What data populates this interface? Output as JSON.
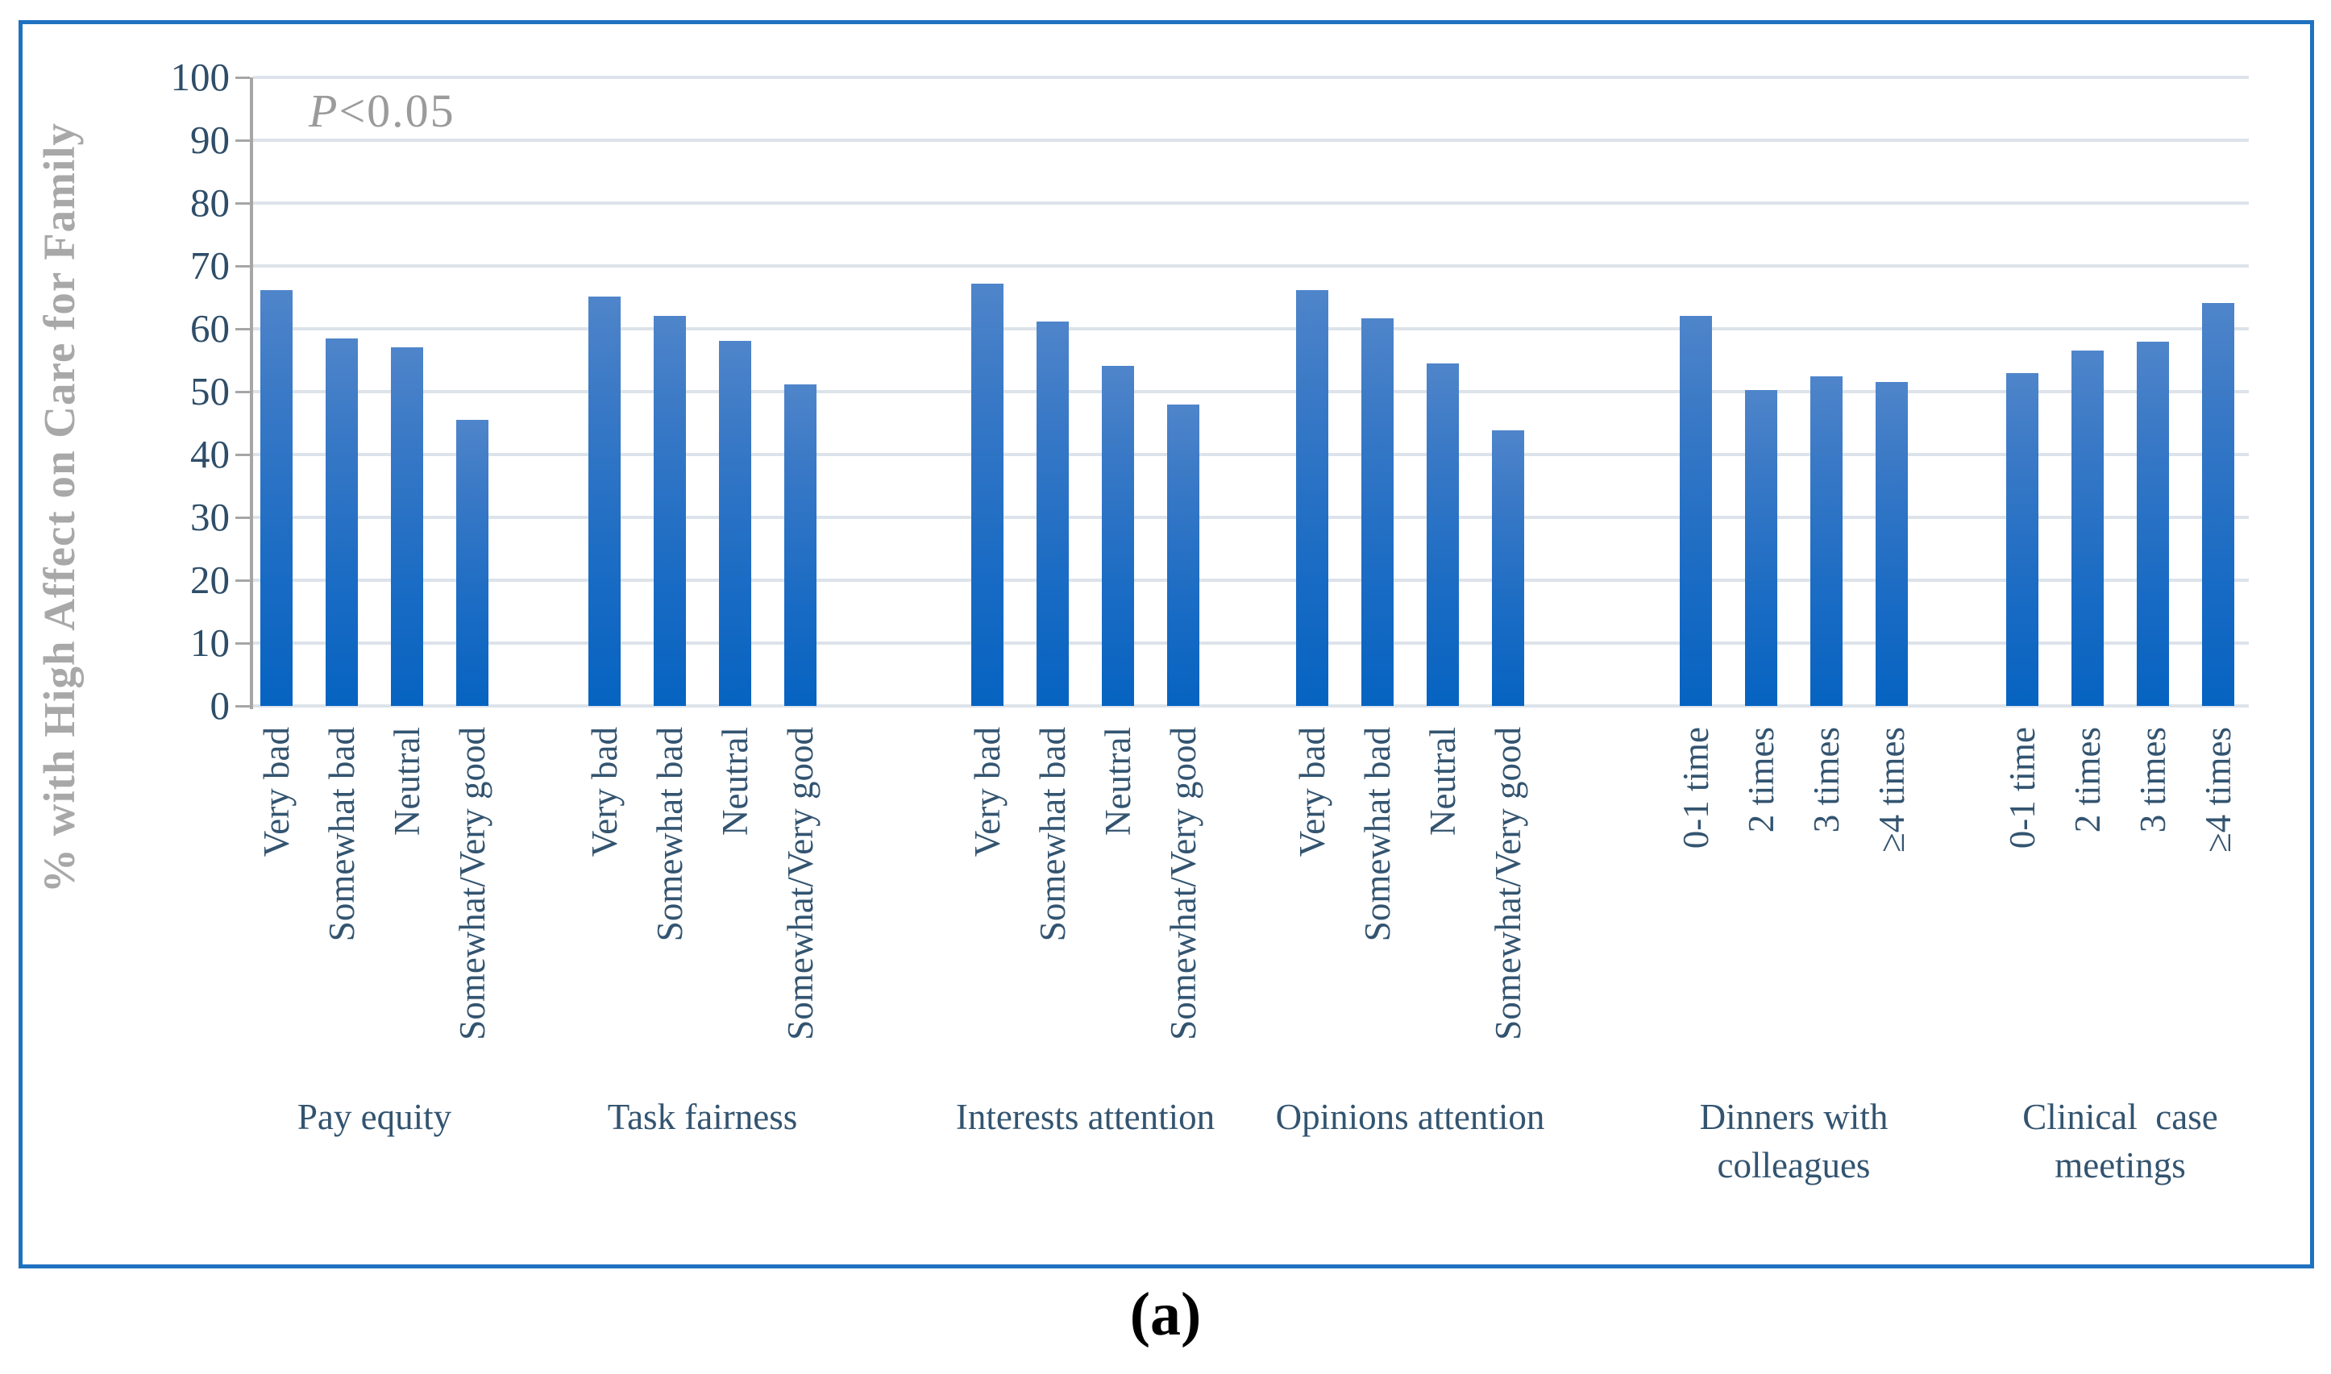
{
  "figure": {
    "caption": "(a)",
    "annotation": {
      "p_symbol": "P",
      "p_rest": "<0.05"
    },
    "colors": {
      "border_blue": "#1f72c0",
      "bar_top": "#4f85ca",
      "bar_bottom": "#0663c1",
      "gridline": "#dde3ea",
      "axis_gray": "#a6a6a6",
      "tick_text": "#2e4d68",
      "label_text": "#335470",
      "annotation_gray": "#9b9b9b",
      "y_title_gray": "#a8a8a8",
      "caption_black": "#000000"
    }
  },
  "chart_data": {
    "type": "bar",
    "title": "",
    "xlabel": "",
    "ylabel": "% with High Affect on Care for Family",
    "ylim": [
      0,
      100
    ],
    "ytick_step": 10,
    "yticks": [
      0,
      10,
      20,
      30,
      40,
      50,
      60,
      70,
      80,
      90,
      100
    ],
    "grid": "horizontal",
    "legend": "none",
    "annotation": "P<0.05",
    "bar_color": "blue gradient",
    "groups": [
      {
        "label_lines": [
          "Pay equity"
        ],
        "categories": [
          "Very bad",
          "Somewhat bad",
          "Neutral",
          "Somewhat/Very good"
        ],
        "values": [
          66.2,
          58.5,
          57.1,
          45.5
        ]
      },
      {
        "label_lines": [
          "Task fairness"
        ],
        "categories": [
          "Very bad",
          "Somewhat bad",
          "Neutral",
          "Somewhat/Very good"
        ],
        "values": [
          65.1,
          62.1,
          58.1,
          51.2
        ]
      },
      {
        "label_lines": [
          "Interests attention"
        ],
        "categories": [
          "Very bad",
          "Somewhat bad",
          "Neutral",
          "Somewhat/Very good"
        ],
        "values": [
          67.2,
          61.1,
          54.1,
          48.0
        ]
      },
      {
        "label_lines": [
          "Opinions attention"
        ],
        "categories": [
          "Very bad",
          "Somewhat bad",
          "Neutral",
          "Somewhat/Very good"
        ],
        "values": [
          66.1,
          61.7,
          54.5,
          43.9
        ]
      },
      {
        "label_lines": [
          "Dinners with",
          "colleagues"
        ],
        "categories": [
          "0-1 time",
          "2 times",
          "3 times",
          "≥4 times"
        ],
        "values": [
          62.0,
          50.3,
          52.5,
          51.5
        ]
      },
      {
        "label_lines": [
          "Clinical  case",
          "meetings"
        ],
        "categories": [
          "0-1 time",
          "2 times",
          "3 times",
          "≥4 times"
        ],
        "values": [
          52.9,
          56.5,
          58.0,
          64.1
        ]
      }
    ]
  }
}
